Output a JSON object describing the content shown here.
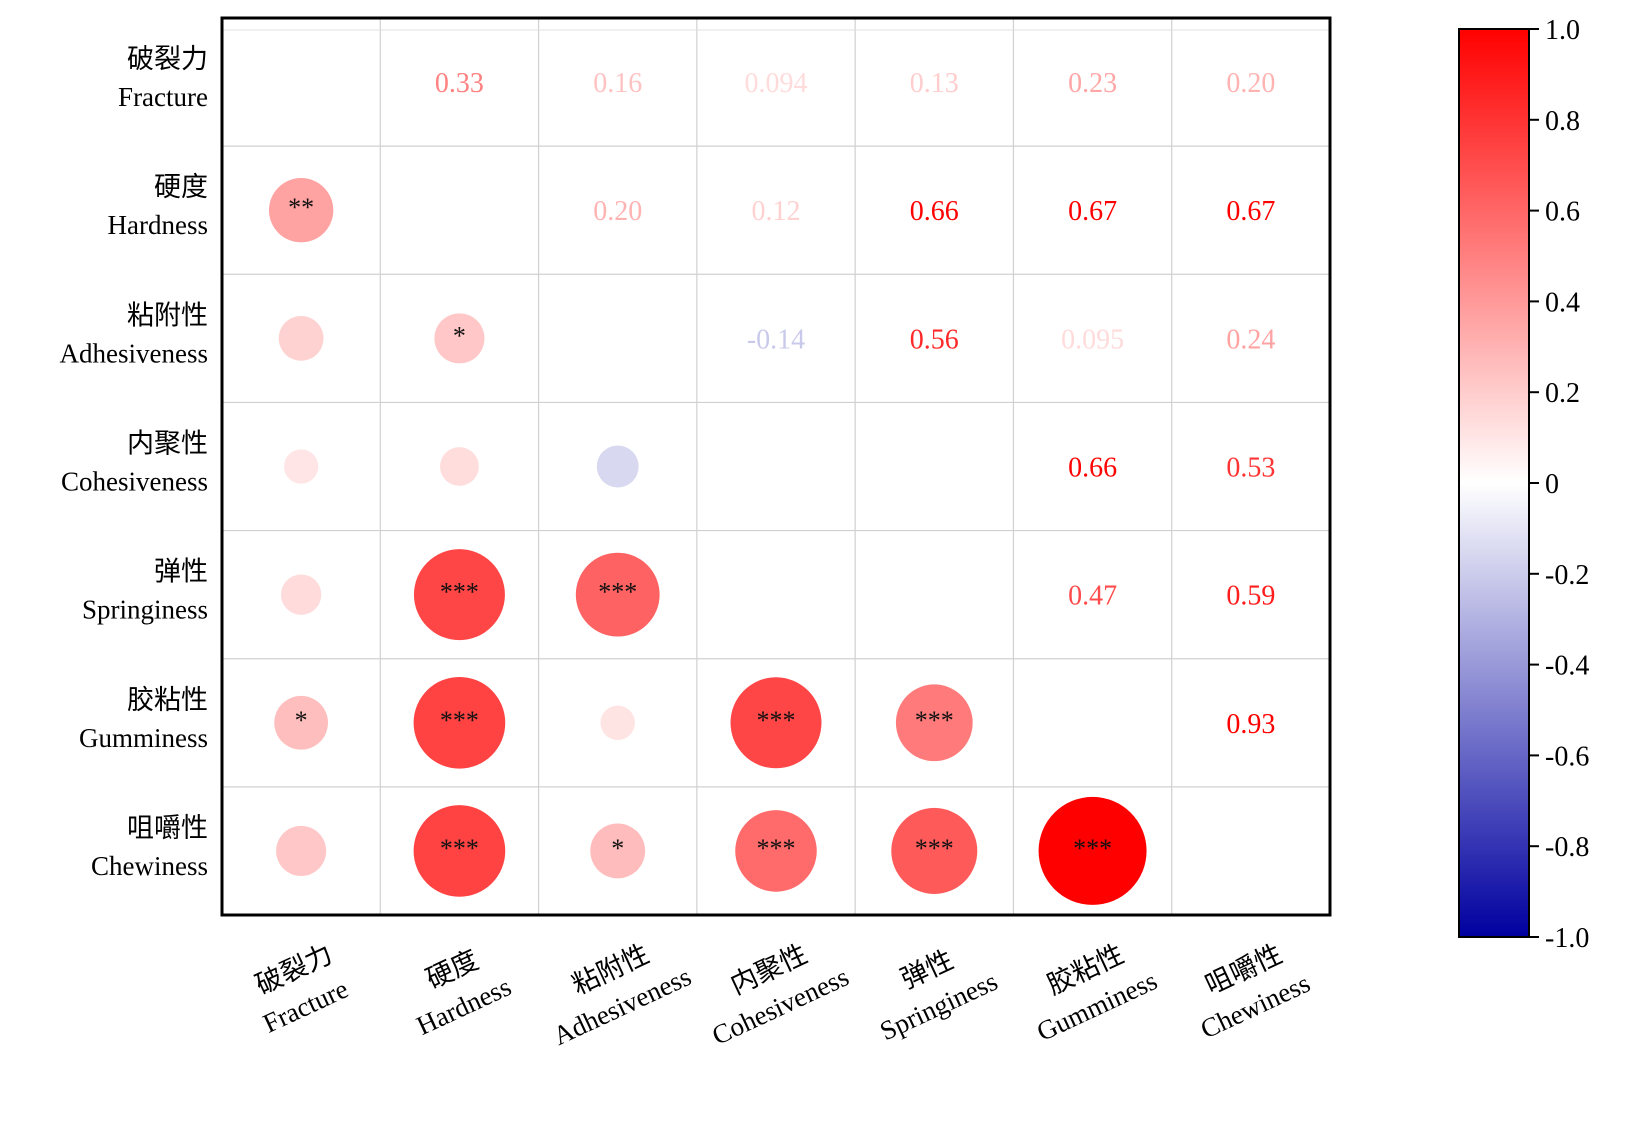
{
  "chart_data": {
    "type": "heatmap",
    "variables": [
      {
        "zh": "破裂力",
        "en": "Fracture"
      },
      {
        "zh": "硬度",
        "en": "Hardness"
      },
      {
        "zh": "粘附性",
        "en": "Adhesiveness"
      },
      {
        "zh": "内聚性",
        "en": "Cohesiveness"
      },
      {
        "zh": "弹性",
        "en": "Springiness"
      },
      {
        "zh": "胶粘性",
        "en": "Gumminess"
      },
      {
        "zh": "咀嚼性",
        "en": "Chewiness"
      }
    ],
    "upper_labels": [
      {
        "row": 0,
        "col": 1,
        "text": "0.33",
        "value": 0.33
      },
      {
        "row": 0,
        "col": 2,
        "text": "0.16",
        "value": 0.16
      },
      {
        "row": 0,
        "col": 3,
        "text": "0.094",
        "value": 0.094
      },
      {
        "row": 0,
        "col": 4,
        "text": "0.13",
        "value": 0.13
      },
      {
        "row": 0,
        "col": 5,
        "text": "0.23",
        "value": 0.23
      },
      {
        "row": 0,
        "col": 6,
        "text": "0.20",
        "value": 0.2
      },
      {
        "row": 1,
        "col": 2,
        "text": "0.20",
        "value": 0.2
      },
      {
        "row": 1,
        "col": 3,
        "text": "0.12",
        "value": 0.12
      },
      {
        "row": 1,
        "col": 4,
        "text": "0.66",
        "value": 0.66
      },
      {
        "row": 1,
        "col": 5,
        "text": "0.67",
        "value": 0.67
      },
      {
        "row": 1,
        "col": 6,
        "text": "0.67",
        "value": 0.67
      },
      {
        "row": 2,
        "col": 3,
        "text": "-0.14",
        "value": -0.14
      },
      {
        "row": 2,
        "col": 4,
        "text": "0.56",
        "value": 0.56
      },
      {
        "row": 2,
        "col": 5,
        "text": "0.095",
        "value": 0.095
      },
      {
        "row": 2,
        "col": 6,
        "text": "0.24",
        "value": 0.24
      },
      {
        "row": 3,
        "col": 5,
        "text": "0.66",
        "value": 0.66
      },
      {
        "row": 3,
        "col": 6,
        "text": "0.53",
        "value": 0.53
      },
      {
        "row": 4,
        "col": 5,
        "text": "0.47",
        "value": 0.47
      },
      {
        "row": 4,
        "col": 6,
        "text": "0.59",
        "value": 0.59
      },
      {
        "row": 5,
        "col": 6,
        "text": "0.93",
        "value": 0.93
      }
    ],
    "lower_circles": [
      {
        "row": 1,
        "col": 0,
        "value": 0.33,
        "sig": "**"
      },
      {
        "row": 2,
        "col": 0,
        "value": 0.16,
        "sig": ""
      },
      {
        "row": 2,
        "col": 1,
        "value": 0.2,
        "sig": "*"
      },
      {
        "row": 3,
        "col": 0,
        "value": 0.094,
        "sig": ""
      },
      {
        "row": 3,
        "col": 1,
        "value": 0.12,
        "sig": ""
      },
      {
        "row": 3,
        "col": 2,
        "value": -0.14,
        "sig": ""
      },
      {
        "row": 4,
        "col": 0,
        "value": 0.13,
        "sig": ""
      },
      {
        "row": 4,
        "col": 1,
        "value": 0.66,
        "sig": "***"
      },
      {
        "row": 4,
        "col": 2,
        "value": 0.56,
        "sig": "***"
      },
      {
        "row": 5,
        "col": 0,
        "value": 0.23,
        "sig": "*"
      },
      {
        "row": 5,
        "col": 1,
        "value": 0.67,
        "sig": "***"
      },
      {
        "row": 5,
        "col": 2,
        "value": 0.095,
        "sig": ""
      },
      {
        "row": 5,
        "col": 3,
        "value": 0.66,
        "sig": "***"
      },
      {
        "row": 5,
        "col": 4,
        "value": 0.47,
        "sig": "***"
      },
      {
        "row": 6,
        "col": 0,
        "value": 0.2,
        "sig": ""
      },
      {
        "row": 6,
        "col": 1,
        "value": 0.67,
        "sig": "***"
      },
      {
        "row": 6,
        "col": 2,
        "value": 0.24,
        "sig": "*"
      },
      {
        "row": 6,
        "col": 3,
        "value": 0.53,
        "sig": "***"
      },
      {
        "row": 6,
        "col": 4,
        "value": 0.59,
        "sig": "***"
      },
      {
        "row": 6,
        "col": 5,
        "value": 0.93,
        "sig": "***"
      }
    ],
    "colorbar": {
      "range": [
        -1.0,
        1.0
      ],
      "ticks": [
        "1.0",
        "0.8",
        "0.6",
        "0.4",
        "0.2",
        "0",
        "-0.2",
        "-0.4",
        "-0.6",
        "-0.8",
        "-1.0"
      ],
      "low_color": "#0000a0",
      "mid_color": "#ffffff",
      "high_color": "#ff0000"
    },
    "grid": true
  }
}
